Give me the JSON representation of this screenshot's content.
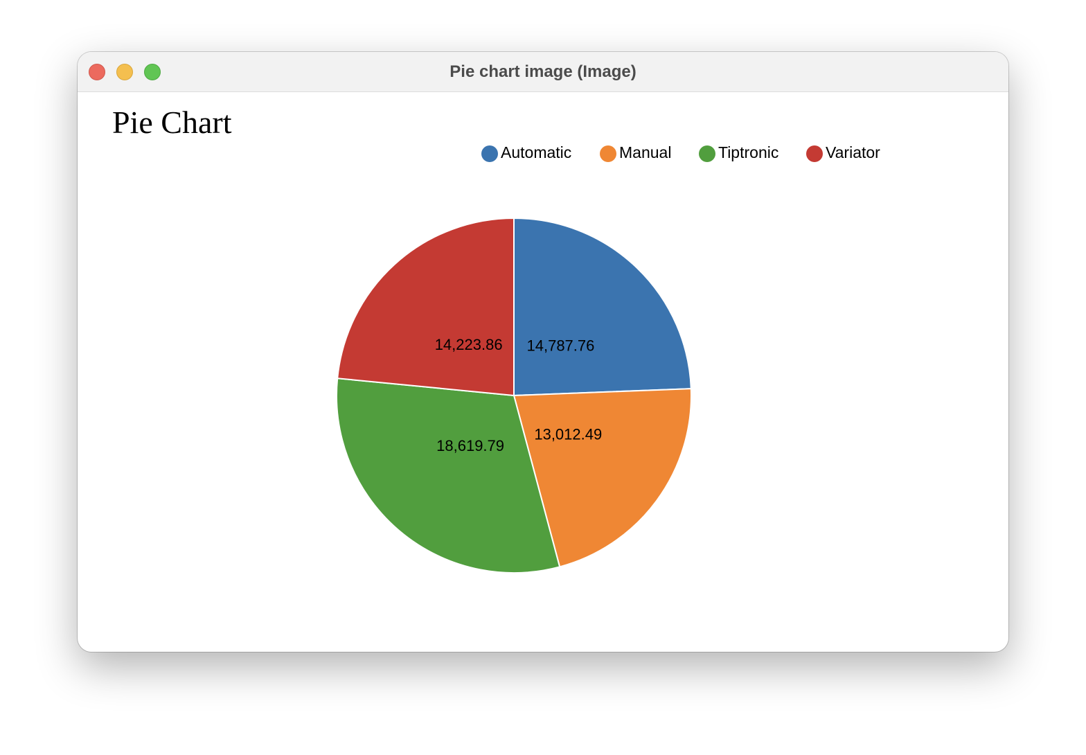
{
  "window": {
    "title": "Pie chart image (Image)"
  },
  "chart_data": {
    "type": "pie",
    "title": "Pie Chart",
    "legend_position": "top",
    "categories": [
      "Automatic",
      "Manual",
      "Tiptronic",
      "Variator"
    ],
    "values": [
      14787.76,
      13012.49,
      18619.79,
      14223.86
    ],
    "value_labels": [
      "14,787.76",
      "13,012.49",
      "18,619.79",
      "14,223.86"
    ],
    "colors": [
      "#3b74af",
      "#ef8734",
      "#519e3e",
      "#c43a33"
    ]
  }
}
